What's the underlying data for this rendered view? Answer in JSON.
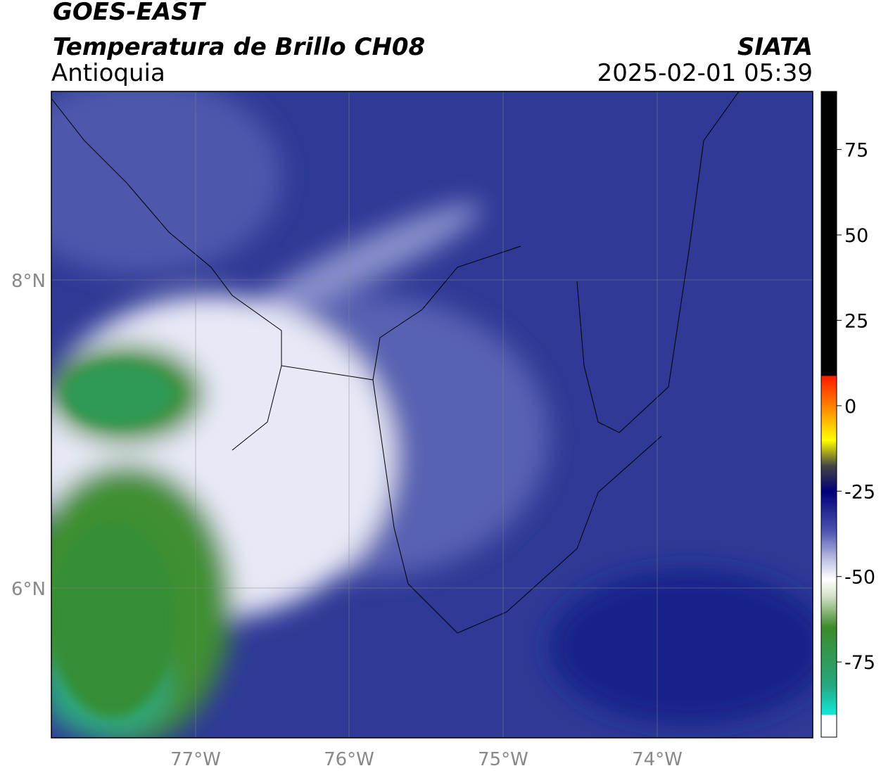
{
  "header": {
    "satellite": "GOES-EAST",
    "product": "Temperatura de Brillo CH08",
    "region": "Antioquia",
    "source": "SIATA",
    "datetime": "2025-02-01 05:39"
  },
  "map": {
    "lat_labels": [
      "8°N",
      "6°N"
    ],
    "lon_labels": [
      "77°W",
      "76°W",
      "75°W",
      "74°W"
    ]
  },
  "colorbar": {
    "range": [
      -97,
      92
    ],
    "ticks": [
      75,
      50,
      25,
      0,
      -25,
      -50,
      -75
    ]
  }
}
